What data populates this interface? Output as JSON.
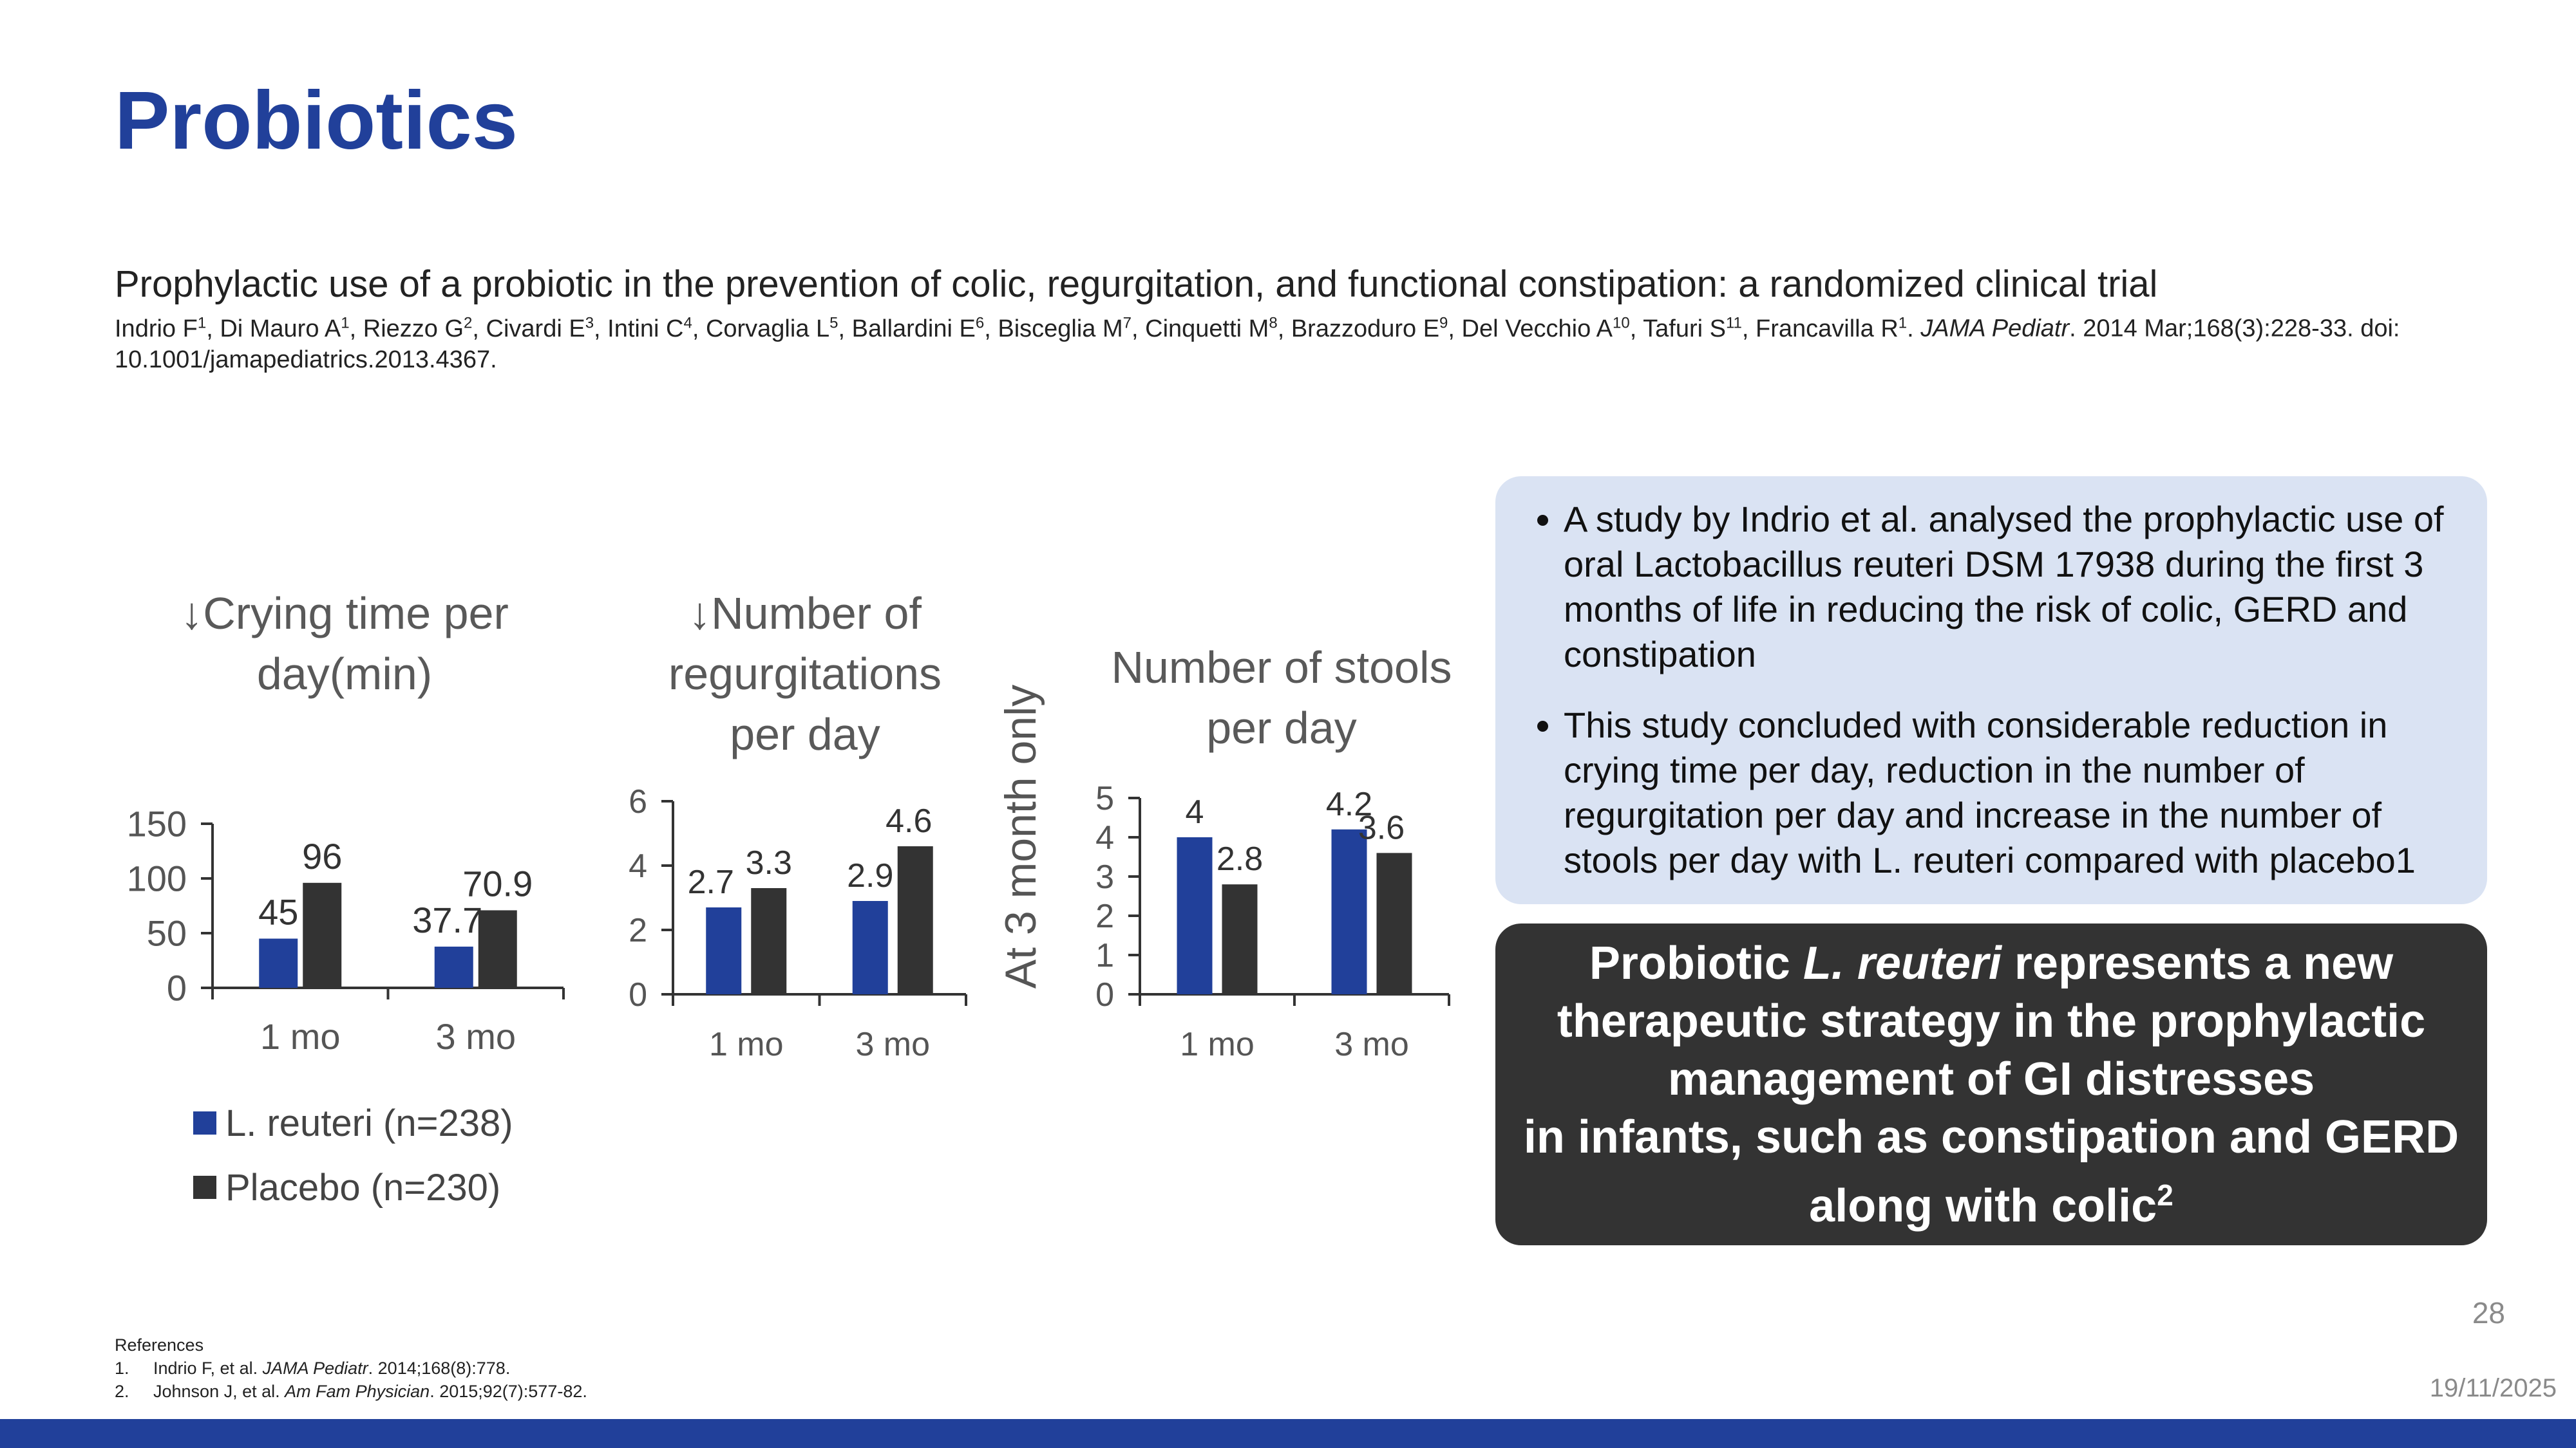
{
  "slide": {
    "title": "Probiotics",
    "study_title": "Prophylactic use of a probiotic in the prevention of colic, regurgitation, and functional constipation: a randomized clinical trial",
    "citation_authors": [
      {
        "name": "Indrio F",
        "sup": "1"
      },
      {
        "name": "Di Mauro A",
        "sup": "1"
      },
      {
        "name": "Riezzo G",
        "sup": "2"
      },
      {
        "name": "Civardi E",
        "sup": "3"
      },
      {
        "name": "Intini C",
        "sup": "4"
      },
      {
        "name": "Corvaglia L",
        "sup": "5"
      },
      {
        "name": "Ballardini E",
        "sup": "6"
      },
      {
        "name": "Bisceglia M",
        "sup": "7"
      },
      {
        "name": "Cinquetti M",
        "sup": "8"
      },
      {
        "name": "Brazzoduro E",
        "sup": "9"
      },
      {
        "name": "Del Vecchio A",
        "sup": "10"
      },
      {
        "name": "Tafuri S",
        "sup": "11"
      },
      {
        "name": "Francavilla R",
        "sup": "1"
      }
    ],
    "citation_journal": "JAMA Pediatr",
    "citation_rest": ". 2014 Mar;168(3):228-33. doi: 10.1001/jamapediatrics.2013.4367.",
    "side_label": "At 3 month only",
    "bullets": [
      "A study by Indrio et al. analysed the prophylactic use of oral Lactobacillus reuteri DSM 17938 during the first 3 months of life in reducing the risk of colic, GERD and constipation",
      "This study concluded with considerable reduction in crying time per day, reduction in the number of regurgitation per day and increase in the number of stools per day with L. reuteri compared with placebo1"
    ],
    "callout": {
      "part1": "Probiotic ",
      "italic": "L. reuteri",
      "part2": " represents a new therapeutic strategy in the prophylactic management of GI distresses",
      "line2": "in infants, such as constipation and GERD along with colic",
      "sup": "2"
    },
    "legend": [
      {
        "label": "L. reuteri (n=238)",
        "color": "#21409a"
      },
      {
        "label": "Placebo (n=230)",
        "color": "#333333"
      }
    ],
    "references_heading": "References",
    "references": [
      {
        "num": "1.",
        "pre": "Indrio F, et al. ",
        "journal": "JAMA Pediatr",
        "post": ". 2014;168(8):778."
      },
      {
        "num": "2.",
        "pre": "Johnson J, et al. ",
        "journal": "Am Fam Physician",
        "post": ". 2015;92(7):577-82."
      }
    ],
    "page_number": "28",
    "date": "19/11/2025",
    "colors": {
      "brand_blue": "#21409a",
      "dark": "#333333",
      "box_blue": "#dae3f3"
    }
  },
  "chart_data": [
    {
      "type": "bar",
      "title": "↓Crying time per day(min)",
      "categories": [
        "1 mo",
        "3 mo"
      ],
      "series": [
        {
          "name": "L. reuteri (n=238)",
          "values": [
            45,
            37.7
          ]
        },
        {
          "name": "Placebo (n=230)",
          "values": [
            96,
            70.9
          ]
        }
      ],
      "data_labels": [
        [
          "45",
          "37.7"
        ],
        [
          "96",
          "70.9"
        ]
      ],
      "ylim": [
        0,
        150
      ],
      "yticks": [
        "0",
        "50",
        "100",
        "150"
      ],
      "ytick_values": [
        0,
        50,
        100,
        150
      ]
    },
    {
      "type": "bar",
      "title": "↓Number of regurgitations per day",
      "categories": [
        "1 mo",
        "3 mo"
      ],
      "series": [
        {
          "name": "L. reuteri (n=238)",
          "values": [
            2.7,
            2.9
          ]
        },
        {
          "name": "Placebo (n=230)",
          "values": [
            3.3,
            4.6
          ]
        }
      ],
      "data_labels": [
        [
          "2.7",
          "2.9"
        ],
        [
          "3.3",
          "4.6"
        ]
      ],
      "ylim": [
        0,
        6
      ],
      "yticks": [
        "0",
        "2",
        "4",
        "6"
      ],
      "ytick_values": [
        0,
        2,
        4,
        6
      ]
    },
    {
      "type": "bar",
      "title": "Number of stools per day",
      "categories": [
        "1 mo",
        "3 mo"
      ],
      "series": [
        {
          "name": "L. reuteri (n=238)",
          "values": [
            4,
            4.2
          ]
        },
        {
          "name": "Placebo (n=230)",
          "values": [
            2.8,
            3.6
          ]
        }
      ],
      "data_labels": [
        [
          "4",
          "4.2"
        ],
        [
          "2.8",
          "3.6"
        ]
      ],
      "ylim": [
        0,
        5
      ],
      "yticks": [
        "0",
        "1",
        "2",
        "3",
        "4",
        "5"
      ],
      "ytick_values": [
        0,
        1,
        2,
        3,
        4,
        5
      ]
    }
  ]
}
